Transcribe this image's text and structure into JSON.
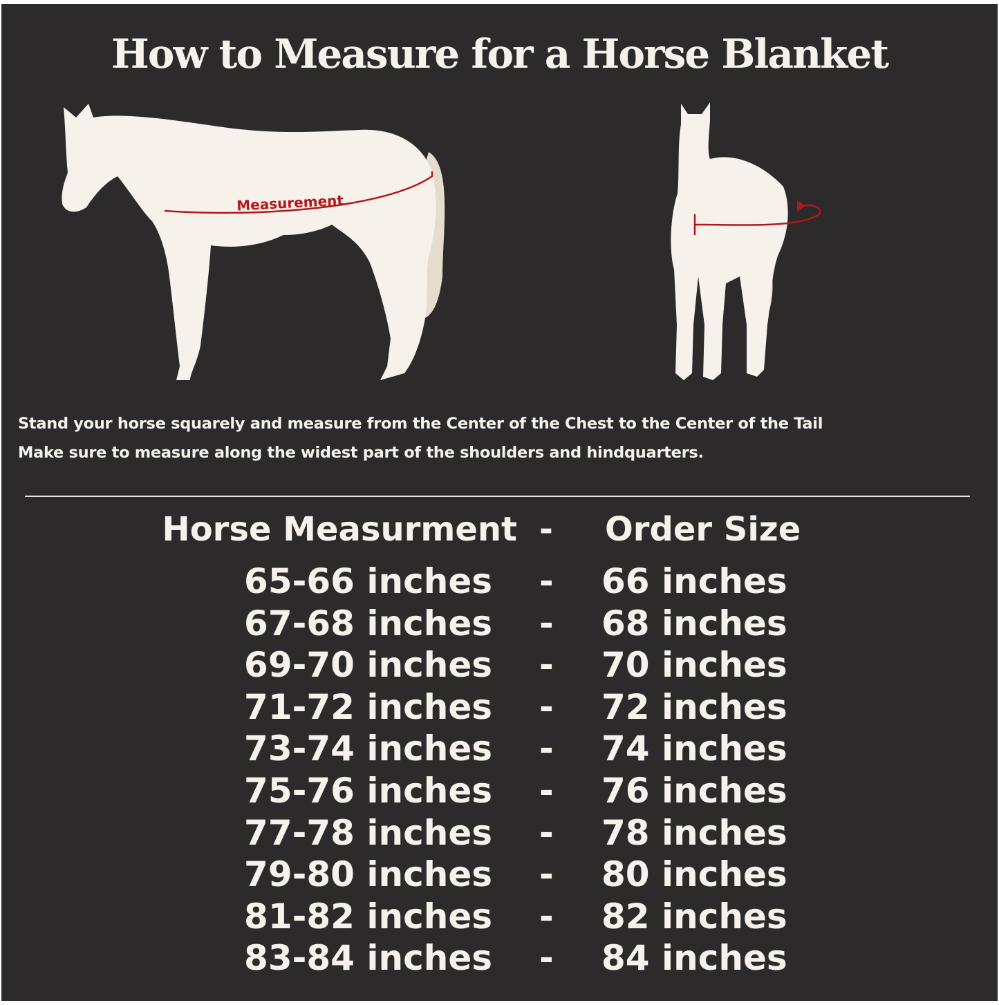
{
  "title": "How to Measure for a Horse Blanket",
  "diagram": {
    "side_label": "Measurement",
    "accent_color": "#b3161b",
    "horse_color": "#f6f2eb",
    "tail_color": "#e6dccd"
  },
  "instructions": [
    "Stand your horse squarely and measure from the Center of the Chest to the Center of the Tail",
    "Make sure to measure along the widest part of the shoulders and hindquarters."
  ],
  "table": {
    "header": {
      "left": "Horse Measurment",
      "sep": "-",
      "right": "Order Size"
    },
    "rows": [
      {
        "measurement": "65-66 inches",
        "sep": "-",
        "size": "66 inches"
      },
      {
        "measurement": "67-68 inches",
        "sep": "-",
        "size": "68 inches"
      },
      {
        "measurement": "69-70 inches",
        "sep": "-",
        "size": "70 inches"
      },
      {
        "measurement": "71-72 inches",
        "sep": "-",
        "size": "72 inches"
      },
      {
        "measurement": "73-74 inches",
        "sep": "-",
        "size": "74 inches"
      },
      {
        "measurement": "75-76 inches",
        "sep": "-",
        "size": "76 inches"
      },
      {
        "measurement": "77-78 inches",
        "sep": "-",
        "size": "78 inches"
      },
      {
        "measurement": "79-80 inches",
        "sep": "-",
        "size": "80 inches"
      },
      {
        "measurement": "81-82 inches",
        "sep": "-",
        "size": "82 inches"
      },
      {
        "measurement": "83-84 inches",
        "sep": "-",
        "size": "84 inches"
      }
    ]
  }
}
